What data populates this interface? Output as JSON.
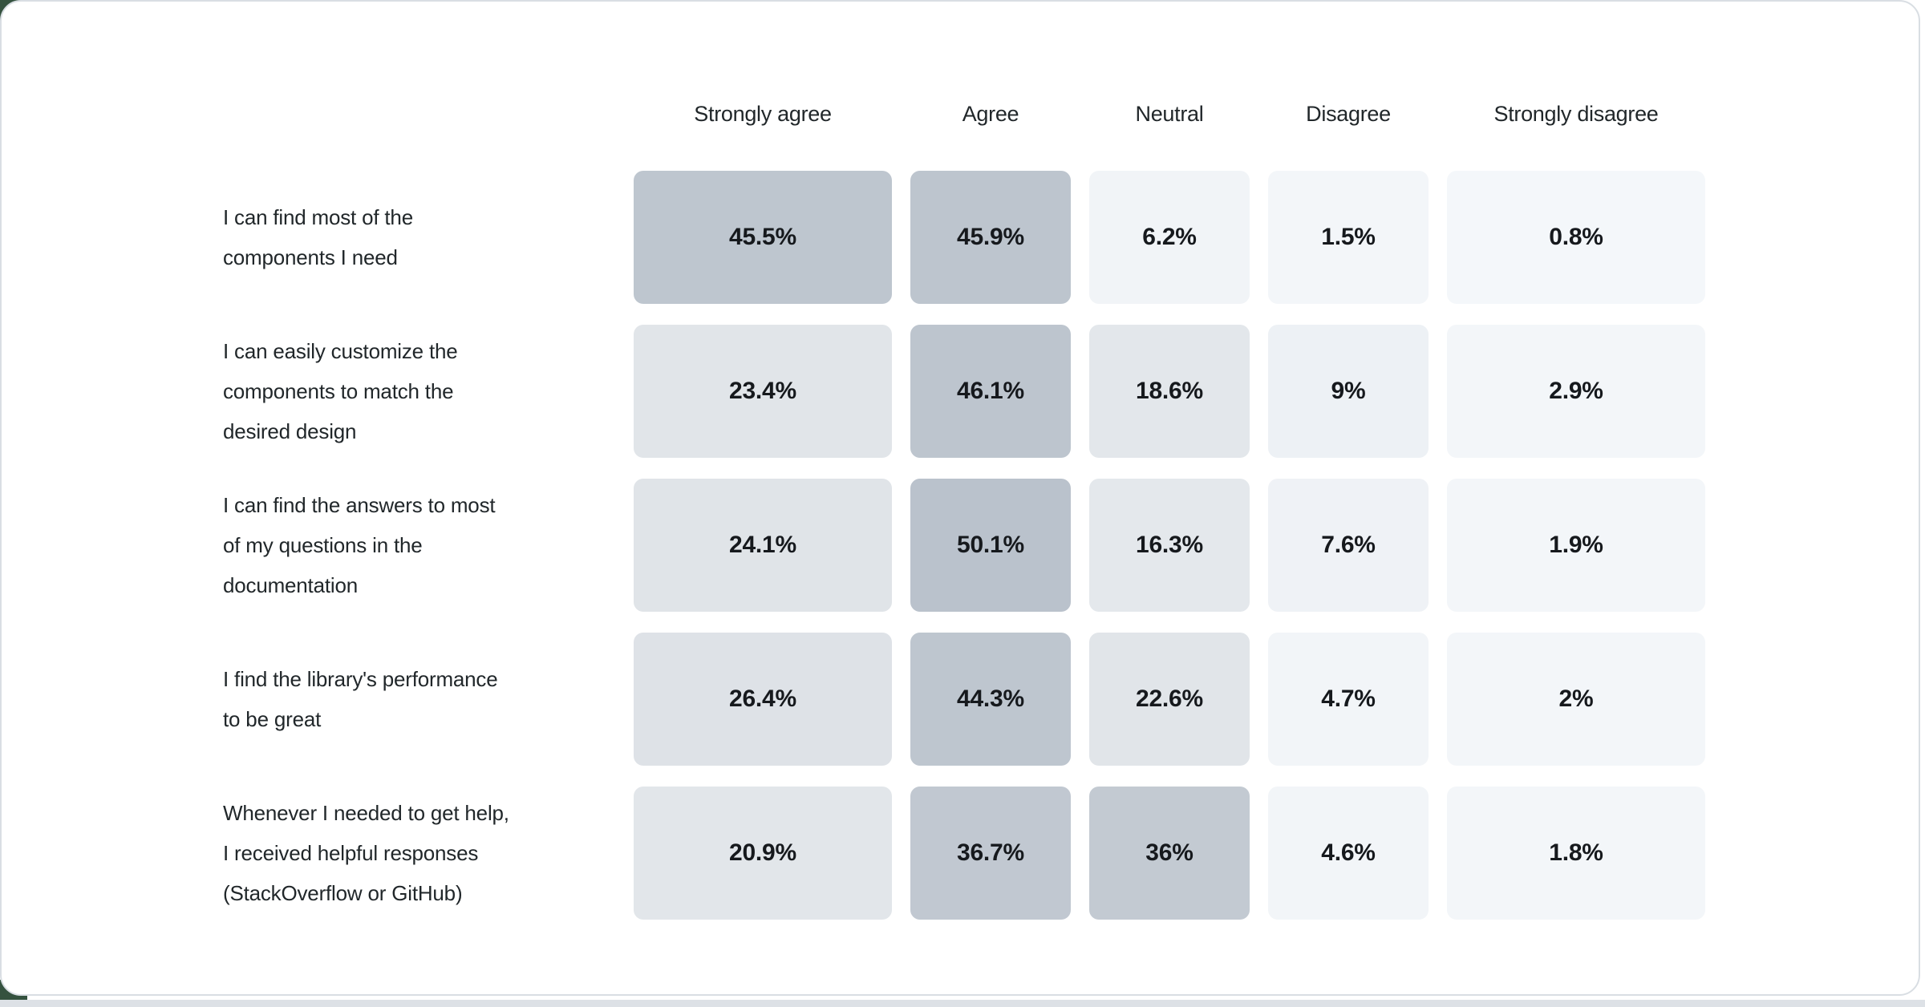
{
  "table": {
    "columns": [
      {
        "label": "Strongly agree"
      },
      {
        "label": "Agree"
      },
      {
        "label": "Neutral"
      },
      {
        "label": "Disagree"
      },
      {
        "label": "Strongly disagree"
      }
    ],
    "rows": [
      {
        "label": "I can find most of the\ncomponents I need",
        "cells": [
          "45.5%",
          "45.9%",
          "6.2%",
          "1.5%",
          "0.8%"
        ]
      },
      {
        "label": "I can easily customize the\ncomponents to match the\ndesired design",
        "cells": [
          "23.4%",
          "46.1%",
          "18.6%",
          "9%",
          "2.9%"
        ]
      },
      {
        "label": "I can find the answers to most\nof my questions in the\ndocumentation",
        "cells": [
          "24.1%",
          "50.1%",
          "16.3%",
          "7.6%",
          "1.9%"
        ]
      },
      {
        "label": "I find the library's performance\nto be great",
        "cells": [
          "26.4%",
          "44.3%",
          "22.6%",
          "4.7%",
          "2%"
        ]
      },
      {
        "label": "Whenever I needed to get help,\nI received helpful responses\n(StackOverflow or GitHub)",
        "cells": [
          "20.9%",
          "36.7%",
          "36%",
          "4.6%",
          "1.8%"
        ]
      }
    ]
  },
  "colors": {
    "card_background": "#ffffff",
    "card_border": "#d9dee3",
    "bottom_strip": "#dde1e6",
    "corner_accent": "#35523f",
    "text": "#21272a",
    "value_text": "#16191d",
    "heat_scale_stops": [
      {
        "value": 0,
        "color": "#f4f7fa"
      },
      {
        "value": 5,
        "color": "#f2f5f8"
      },
      {
        "value": 10,
        "color": "#ecf0f4"
      },
      {
        "value": 15,
        "color": "#e5e9ed"
      },
      {
        "value": 23,
        "color": "#e1e5e9"
      },
      {
        "value": 27,
        "color": "#dee2e7"
      },
      {
        "value": 33,
        "color": "#c7ced6"
      },
      {
        "value": 37,
        "color": "#c1c8d1"
      },
      {
        "value": 45,
        "color": "#bec6cf"
      },
      {
        "value": 51,
        "color": "#b9c1cb"
      }
    ]
  },
  "chart_data": {
    "type": "heatmap",
    "title": "",
    "categories": [
      "Strongly agree",
      "Agree",
      "Neutral",
      "Disagree",
      "Strongly disagree"
    ],
    "rows": [
      {
        "name": "I can find most of the components I need",
        "values": [
          45.5,
          45.9,
          6.2,
          1.5,
          0.8
        ]
      },
      {
        "name": "I can easily customize the components to match the desired design",
        "values": [
          23.4,
          46.1,
          18.6,
          9,
          2.9
        ]
      },
      {
        "name": "I can find the answers to most of my questions in the documentation",
        "values": [
          24.1,
          50.1,
          16.3,
          7.6,
          1.9
        ]
      },
      {
        "name": "I find the library's performance to be great",
        "values": [
          26.4,
          44.3,
          22.6,
          4.7,
          2
        ]
      },
      {
        "name": "Whenever I needed to get help, I received helpful responses (StackOverflow or GitHub)",
        "values": [
          20.9,
          36.7,
          36,
          4.6,
          1.8
        ]
      }
    ],
    "value_unit": "%",
    "value_range": [
      0,
      50.1
    ],
    "legend": "none",
    "grid": "off",
    "color_scale": {
      "low": "#f4f7fa",
      "high": "#b9c1cb"
    }
  }
}
